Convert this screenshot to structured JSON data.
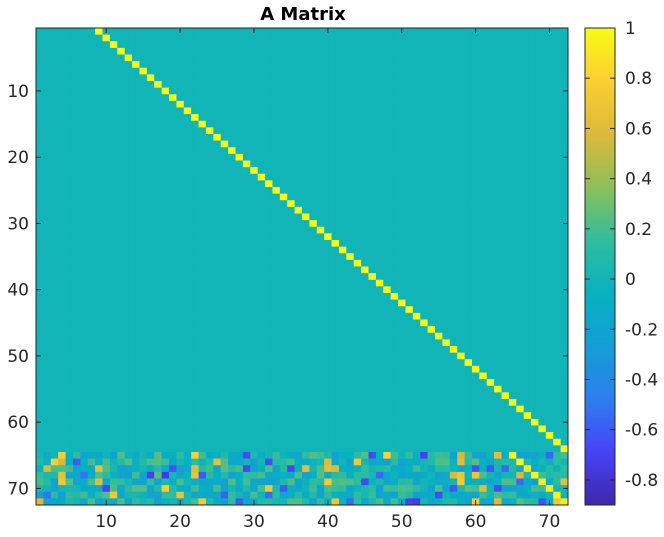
{
  "chart_data": {
    "type": "heatmap",
    "title": "A Matrix",
    "xlabel": "",
    "ylabel": "",
    "rows": 72,
    "cols": 72,
    "xlim": [
      0.5,
      72.5
    ],
    "ylim": [
      0.5,
      72.5
    ],
    "y_reversed": true,
    "x_ticks": [
      10,
      20,
      30,
      40,
      50,
      60,
      70
    ],
    "y_ticks": [
      10,
      20,
      30,
      40,
      50,
      60,
      70
    ],
    "x_tick_labels": [
      "10",
      "20",
      "30",
      "40",
      "50",
      "60",
      "70"
    ],
    "y_tick_labels": [
      "10",
      "20",
      "30",
      "40",
      "50",
      "60",
      "70"
    ],
    "color_limits": [
      -0.9,
      1.0
    ],
    "colormap": "parula",
    "colormap_stops": [
      "#3e26a8",
      "#4743f7",
      "#2d7ff0",
      "#149ed5",
      "#06b2c0",
      "#30bd9d",
      "#8cc058",
      "#dcb93a",
      "#fbcf31",
      "#f9fb15"
    ],
    "background_value": 0,
    "structure": {
      "identity_shift": {
        "description": "A(i, i+8) = 1 for rows 1 to 64",
        "row_start": 1,
        "row_end": 64,
        "col_offset": 8,
        "value": 1
      },
      "lower_block": {
        "row_start": 65,
        "row_end": 72,
        "col_start": 1,
        "col_end": 72,
        "value_range": [
          -0.9,
          1.0
        ]
      },
      "lower_block_diagonal": {
        "description": "A(64+k, 64+k) is close to 1 for k = 1..8",
        "row_start": 65,
        "col_start": 65,
        "approx_value": 0.95
      }
    },
    "colorbar": {
      "ticks": [
        1,
        0.8,
        0.6,
        0.4,
        0.2,
        0,
        -0.2,
        -0.4,
        -0.6,
        -0.8
      ],
      "tick_labels": [
        "1",
        "0.8",
        "0.6",
        "0.4",
        "0.2",
        "0",
        "-0.2",
        "-0.4",
        "-0.6",
        "-0.8"
      ],
      "location": "right"
    },
    "grid": false,
    "legend": "none"
  }
}
